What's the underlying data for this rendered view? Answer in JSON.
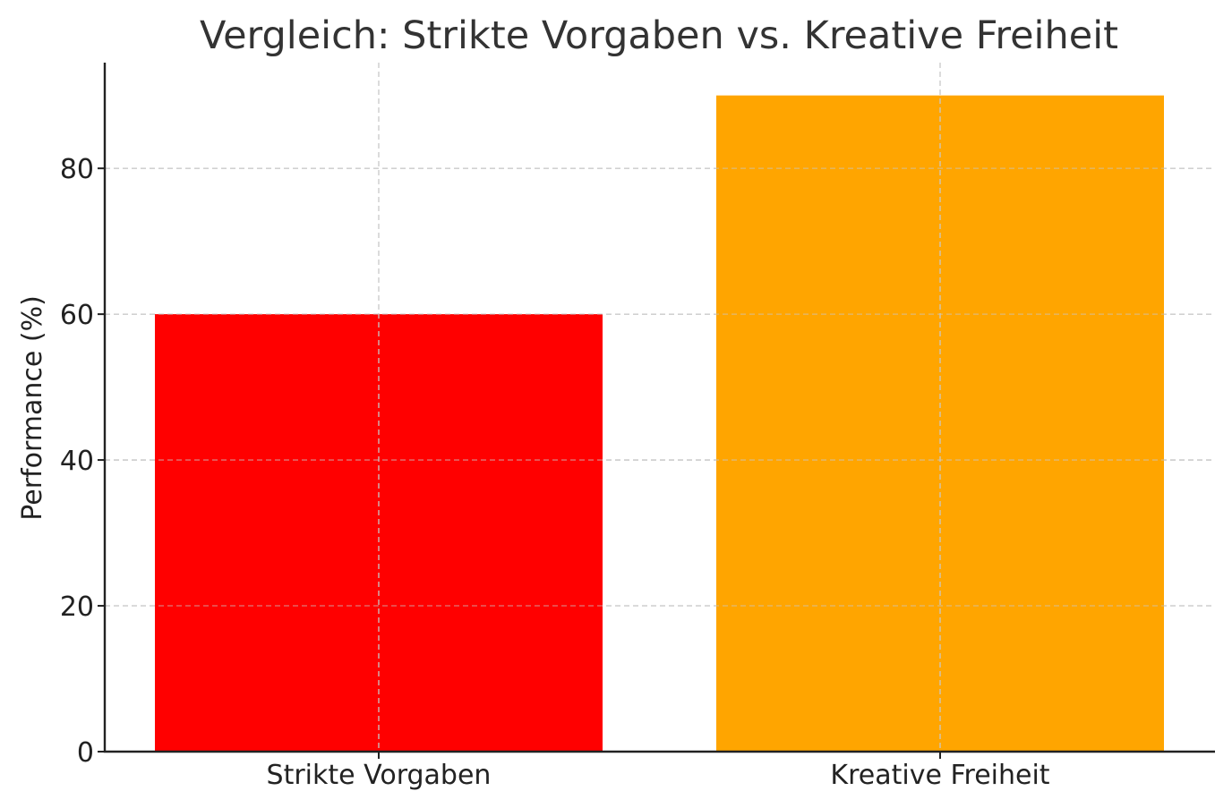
{
  "chart_data": {
    "type": "bar",
    "title": "Vergleich: Strikte Vorgaben vs. Kreative Freiheit",
    "xlabel": "",
    "ylabel": "Performance (%)",
    "categories": [
      "Strikte Vorgaben",
      "Kreative Freiheit"
    ],
    "values": [
      60,
      90
    ],
    "colors": [
      "#ff0000",
      "#ffa500"
    ],
    "ylim": [
      0,
      94.5
    ],
    "yticks": [
      0,
      20,
      40,
      60,
      80
    ],
    "grid": true
  }
}
